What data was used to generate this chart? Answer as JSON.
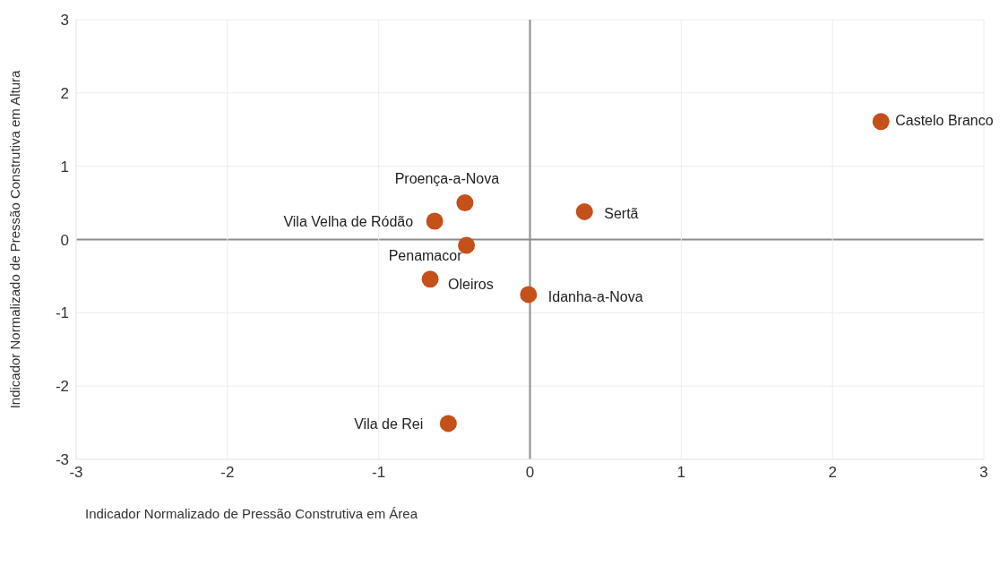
{
  "chart_data": {
    "type": "scatter",
    "xlabel": "Indicador Normalizado de Pressão Construtiva em Área",
    "ylabel": "Indicador Normalizado de Pressão Construtiva em Altura",
    "xlim": [
      -3,
      3
    ],
    "ylim": [
      -3,
      3
    ],
    "xticks": [
      -3,
      -2,
      -1,
      0,
      1,
      2,
      3
    ],
    "yticks": [
      -3,
      -2,
      -1,
      0,
      1,
      2,
      3
    ],
    "grid": true,
    "marker": "circle",
    "legend": false,
    "series": [
      {
        "color": "#c4501a",
        "x": [
          2.32,
          0.36,
          -0.43,
          -0.63,
          -0.42,
          -0.66,
          -0.01,
          -0.54
        ],
        "values": [
          1.61,
          0.38,
          0.5,
          0.25,
          -0.08,
          -0.54,
          -0.75,
          -2.51
        ]
      }
    ],
    "annotations": [
      {
        "text": "Castelo Branco",
        "x": 2.32,
        "y": 1.61
      },
      {
        "text": "Sertã",
        "x": 0.36,
        "y": 0.38
      },
      {
        "text": "Proença-a-Nova",
        "x": -0.43,
        "y": 0.5
      },
      {
        "text": "Vila Velha de Ródão",
        "x": -0.63,
        "y": 0.25
      },
      {
        "text": "Penamacor",
        "x": -0.42,
        "y": -0.08
      },
      {
        "text": "Oleiros",
        "x": -0.66,
        "y": -0.54
      },
      {
        "text": "Idanha-a-Nova",
        "x": -0.01,
        "y": -0.75
      },
      {
        "text": "Vila de Rei",
        "x": -0.54,
        "y": -2.51
      }
    ]
  }
}
